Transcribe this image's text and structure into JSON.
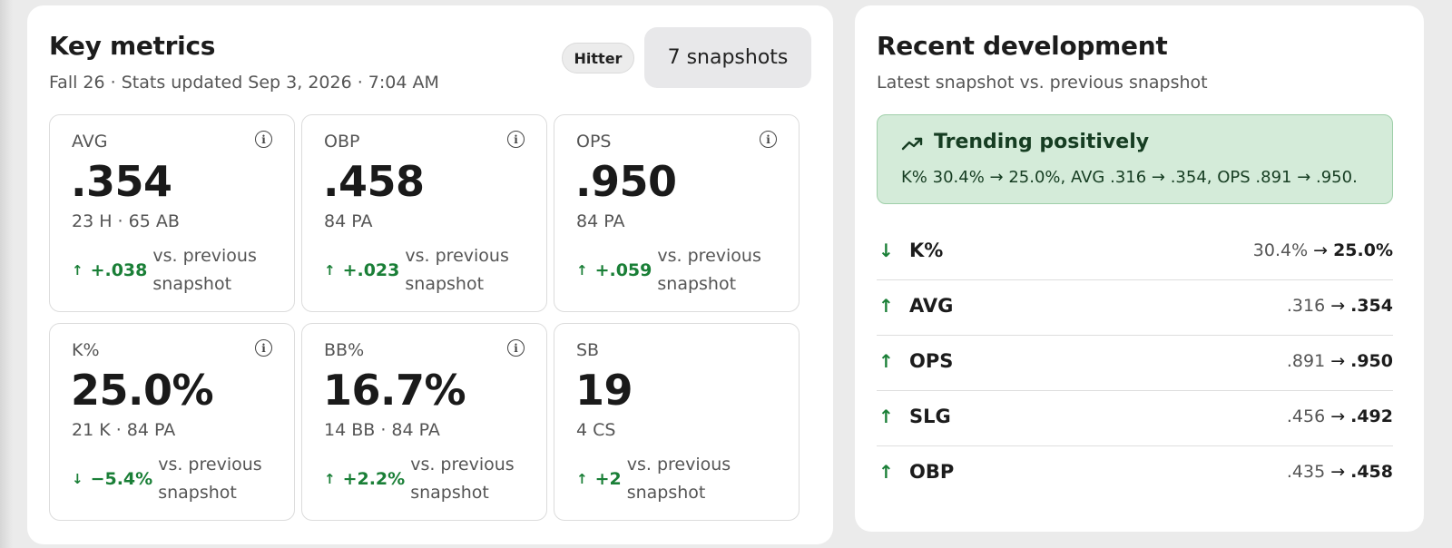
{
  "metrics": {
    "title": "Key metrics",
    "subtitle": "Fall 26 · Stats updated Sep 3, 2026 · 7:04 AM",
    "badge": "Hitter",
    "snapshots_button": "7 snapshots",
    "cards": [
      {
        "label": "AVG",
        "value": ".354",
        "detail": "23 H · 65 AB",
        "arrow": "↑",
        "change": "+.038",
        "change_text": "vs. previous snapshot",
        "info": "i"
      },
      {
        "label": "OBP",
        "value": ".458",
        "detail": "84 PA",
        "arrow": "↑",
        "change": "+.023",
        "change_text": "vs. previous snapshot",
        "info": "i"
      },
      {
        "label": "OPS",
        "value": ".950",
        "detail": "84 PA",
        "arrow": "↑",
        "change": "+.059",
        "change_text": "vs. previous snapshot",
        "info": "i"
      },
      {
        "label": "K%",
        "value": "25.0%",
        "detail": "21 K · 84 PA",
        "arrow": "↓",
        "change": "−5.4%",
        "change_text": "vs. previous snapshot",
        "info": "i"
      },
      {
        "label": "BB%",
        "value": "16.7%",
        "detail": "14 BB · 84 PA",
        "arrow": "↑",
        "change": "+2.2%",
        "change_text": "vs. previous snapshot",
        "info": "i"
      },
      {
        "label": "SB",
        "value": "19",
        "detail": "4 CS",
        "arrow": "↑",
        "change": "+2",
        "change_text": "vs. previous snapshot"
      }
    ]
  },
  "recent": {
    "title": "Recent development",
    "subtitle": "Latest snapshot vs. previous snapshot",
    "trend": {
      "icon": "trending-up-icon",
      "title": "Trending positively",
      "description": "K% 30.4% → 25.0%, AVG .316 → .354, OPS .891 → .950."
    },
    "rows": [
      {
        "arrow": "↓",
        "name": "K%",
        "old": "30.4%",
        "to": "→",
        "new": "25.0%"
      },
      {
        "arrow": "↑",
        "name": "AVG",
        "old": ".316",
        "to": "→",
        "new": ".354"
      },
      {
        "arrow": "↑",
        "name": "OPS",
        "old": ".891",
        "to": "→",
        "new": ".950"
      },
      {
        "arrow": "↑",
        "name": "SLG",
        "old": ".456",
        "to": "→",
        "new": ".492"
      },
      {
        "arrow": "↑",
        "name": "OBP",
        "old": ".435",
        "to": "→",
        "new": ".458"
      }
    ]
  },
  "colors": {
    "positive": "#1a7f37",
    "trend_bg": "#d4ebd9"
  }
}
